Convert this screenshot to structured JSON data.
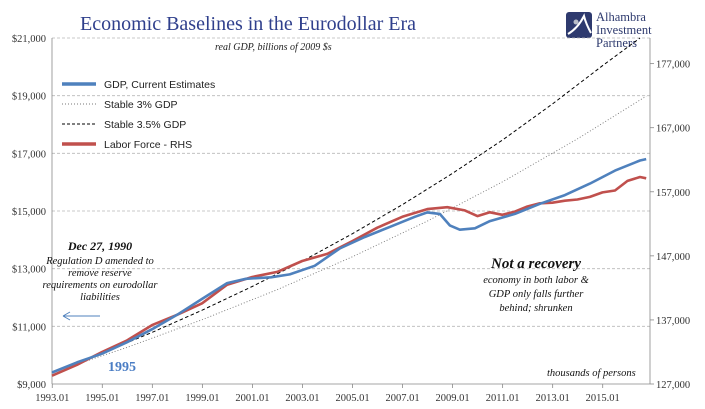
{
  "chart_data": {
    "type": "line",
    "title": "Economic Baselines in the Eurodollar Era",
    "subtitle": "real GDP, billions of 2009 $s",
    "right_axis_note": "thousands of persons",
    "x_ticks": [
      "1993.01",
      "1995.01",
      "1997.01",
      "1999.01",
      "2001.01",
      "2003.01",
      "2005.01",
      "2007.01",
      "2009.01",
      "2011.01",
      "2013.01",
      "2015.01"
    ],
    "x_range": [
      1993.0,
      2016.9
    ],
    "y_left": {
      "range": [
        9000,
        21000
      ],
      "ticks": [
        "$9,000",
        "$11,000",
        "$13,000",
        "$15,000",
        "$17,000",
        "$19,000",
        "$21,000"
      ],
      "tick_values": [
        9000,
        11000,
        13000,
        15000,
        17000,
        19000,
        21000
      ]
    },
    "y_right": {
      "range": [
        127000,
        181000
      ],
      "ticks": [
        "127,000",
        "137,000",
        "147,000",
        "157,000",
        "167,000",
        "177,000"
      ],
      "tick_values": [
        127000,
        137000,
        147000,
        157000,
        167000,
        177000
      ]
    },
    "grid": "horizontal dashed",
    "legend_position": "top-left",
    "series": [
      {
        "name": "GDP, Current Estimates",
        "axis": "left",
        "style": "solid",
        "color": "#4f81bd",
        "points": [
          [
            1993.0,
            9400
          ],
          [
            1994.0,
            9750
          ],
          [
            1995.0,
            10050
          ],
          [
            1996.0,
            10450
          ],
          [
            1997.0,
            10900
          ],
          [
            1998.0,
            11400
          ],
          [
            1999.0,
            11950
          ],
          [
            2000.0,
            12500
          ],
          [
            2000.75,
            12650
          ],
          [
            2001.75,
            12700
          ],
          [
            2002.5,
            12800
          ],
          [
            2003.5,
            13100
          ],
          [
            2004.5,
            13700
          ],
          [
            2005.5,
            14100
          ],
          [
            2006.5,
            14450
          ],
          [
            2007.5,
            14800
          ],
          [
            2008.0,
            14950
          ],
          [
            2008.5,
            14900
          ],
          [
            2008.9,
            14500
          ],
          [
            2009.3,
            14350
          ],
          [
            2009.9,
            14400
          ],
          [
            2010.5,
            14650
          ],
          [
            2011.5,
            14900
          ],
          [
            2012.5,
            15250
          ],
          [
            2013.5,
            15550
          ],
          [
            2014.5,
            15950
          ],
          [
            2015.5,
            16400
          ],
          [
            2016.5,
            16750
          ],
          [
            2016.75,
            16800
          ]
        ]
      },
      {
        "name": "Stable 3% GDP",
        "axis": "left",
        "style": "dotted",
        "color": "#777777",
        "points": [
          [
            1993.0,
            9400
          ],
          [
            1996.0,
            10270
          ],
          [
            1999.0,
            11230
          ],
          [
            2002.0,
            12270
          ],
          [
            2005.0,
            13410
          ],
          [
            2008.0,
            14650
          ],
          [
            2011.0,
            16010
          ],
          [
            2014.0,
            17500
          ],
          [
            2016.75,
            18980
          ]
        ]
      },
      {
        "name": "Stable 3.5% GDP",
        "axis": "left",
        "style": "dashed",
        "color": "#000000",
        "points": [
          [
            1993.0,
            9400
          ],
          [
            1995.0,
            10070
          ],
          [
            1997.0,
            10790
          ],
          [
            1999.0,
            11560
          ],
          [
            2001.0,
            12380
          ],
          [
            2003.0,
            13260
          ],
          [
            2005.0,
            14210
          ],
          [
            2007.0,
            15220
          ],
          [
            2009.0,
            16300
          ],
          [
            2011.0,
            17460
          ],
          [
            2013.0,
            18710
          ],
          [
            2015.0,
            20040
          ],
          [
            2016.5,
            21000
          ]
        ]
      },
      {
        "name": "Labor Force - RHS",
        "axis": "right",
        "style": "solid",
        "color": "#c0504d",
        "points": [
          [
            1993.0,
            128300
          ],
          [
            1994.0,
            130000
          ],
          [
            1995.0,
            132000
          ],
          [
            1996.0,
            133800
          ],
          [
            1997.0,
            136200
          ],
          [
            1998.0,
            137800
          ],
          [
            1999.0,
            139600
          ],
          [
            2000.0,
            142500
          ],
          [
            2001.0,
            143700
          ],
          [
            2002.0,
            144500
          ],
          [
            2003.0,
            146200
          ],
          [
            2004.0,
            147300
          ],
          [
            2005.0,
            149300
          ],
          [
            2006.0,
            151400
          ],
          [
            2007.0,
            153100
          ],
          [
            2008.0,
            154300
          ],
          [
            2008.8,
            154600
          ],
          [
            2009.5,
            154100
          ],
          [
            2010.0,
            153200
          ],
          [
            2010.5,
            153800
          ],
          [
            2011.0,
            153400
          ],
          [
            2011.5,
            153900
          ],
          [
            2012.0,
            154700
          ],
          [
            2012.5,
            155200
          ],
          [
            2013.0,
            155300
          ],
          [
            2013.5,
            155600
          ],
          [
            2014.0,
            155800
          ],
          [
            2014.5,
            156200
          ],
          [
            2015.0,
            156900
          ],
          [
            2015.5,
            157200
          ],
          [
            2016.0,
            158700
          ],
          [
            2016.5,
            159300
          ],
          [
            2016.75,
            159100
          ]
        ]
      }
    ],
    "annotations": {
      "left_date": "Dec 27, 1990",
      "left_lines": [
        "Regulation D amended to",
        "remove reserve",
        "requirements on eurodollar",
        "liabilities"
      ],
      "year_1995": "1995",
      "recovery_head": "Not a recovery",
      "recovery_lines": [
        "economy in both labor &",
        "GDP only falls further",
        "behind; shrunken"
      ]
    }
  },
  "logo": {
    "lines": [
      "Alhambra",
      "Investment",
      "Partners"
    ],
    "colors": {
      "navy": "#2e3a6e",
      "light": "#b9bdc8"
    }
  }
}
